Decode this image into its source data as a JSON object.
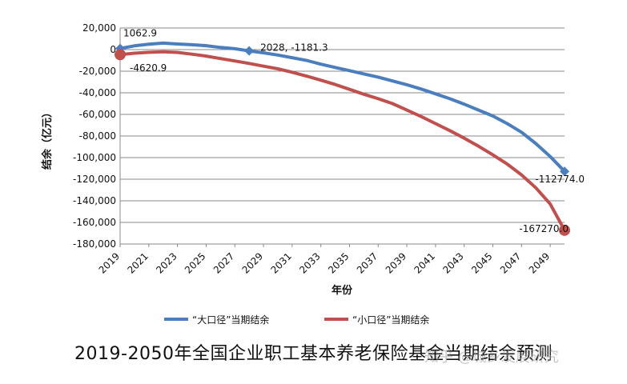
{
  "chart_data": {
    "type": "line",
    "ylabel": "结余（亿元）",
    "xlabel": "年份",
    "ylim": [
      -180000,
      20000
    ],
    "xlim": [
      2019,
      2050
    ],
    "y_ticks": [
      20000,
      0,
      -20000,
      -40000,
      -60000,
      -80000,
      -100000,
      -120000,
      -140000,
      -160000,
      -180000
    ],
    "y_tick_labels": [
      "20,000",
      "0",
      "-20,000",
      "-40,000",
      "-60,000",
      "-80,000",
      "-100,000",
      "-120,000",
      "-140,000",
      "-160,000",
      "-180,000"
    ],
    "x_ticks": [
      2019,
      2021,
      2023,
      2025,
      2027,
      2029,
      2031,
      2033,
      2035,
      2037,
      2039,
      2041,
      2043,
      2045,
      2047,
      2049
    ],
    "grid": "horizontal",
    "legend_position": "bottom",
    "series": [
      {
        "name": "“大口径”当期结余",
        "color": "#4a7ebf",
        "x": [
          2019,
          2020,
          2021,
          2022,
          2023,
          2024,
          2025,
          2026,
          2027,
          2028,
          2029,
          2030,
          2031,
          2032,
          2033,
          2034,
          2035,
          2036,
          2037,
          2038,
          2039,
          2040,
          2041,
          2042,
          2043,
          2044,
          2045,
          2046,
          2047,
          2048,
          2049,
          2050
        ],
        "values": [
          1062.9,
          3500,
          5000,
          6000,
          5200,
          4500,
          3600,
          2000,
          800,
          -1181.3,
          -3000,
          -5000,
          -7500,
          -10000,
          -13500,
          -16500,
          -19500,
          -22500,
          -25500,
          -29000,
          -32500,
          -36500,
          -41000,
          -45500,
          -50500,
          -56000,
          -61500,
          -68500,
          -76500,
          -87000,
          -99000,
          -112774.0
        ]
      },
      {
        "name": "“小口径”当期结余",
        "color": "#c0504d",
        "x": [
          2019,
          2020,
          2021,
          2022,
          2023,
          2024,
          2025,
          2026,
          2027,
          2028,
          2029,
          2030,
          2031,
          2032,
          2033,
          2034,
          2035,
          2036,
          2037,
          2038,
          2039,
          2040,
          2041,
          2042,
          2043,
          2044,
          2045,
          2046,
          2047,
          2048,
          2049,
          2050
        ],
        "values": [
          -4620.9,
          -3300,
          -2500,
          -2000,
          -2600,
          -4200,
          -6000,
          -8300,
          -10500,
          -12800,
          -15300,
          -17800,
          -21000,
          -24500,
          -28300,
          -32300,
          -36800,
          -41300,
          -45500,
          -50000,
          -56000,
          -62000,
          -68500,
          -75000,
          -82000,
          -89500,
          -97500,
          -106000,
          -116000,
          -128000,
          -143000,
          -167270.0
        ]
      }
    ],
    "annotations": [
      {
        "text": "1062.9",
        "series": 0,
        "x": 2019,
        "value": 1062.9,
        "marker": "diamond"
      },
      {
        "text": "2028, -1181.3",
        "series": 0,
        "x": 2028,
        "value": -1181.3,
        "marker": "diamond"
      },
      {
        "text": "-112774.0",
        "series": 0,
        "x": 2050,
        "value": -112774.0,
        "marker": "diamond"
      },
      {
        "text": "-4620.9",
        "series": 1,
        "x": 2019,
        "value": -4620.9,
        "marker": "circle"
      },
      {
        "text": "-167270.0",
        "series": 1,
        "x": 2050,
        "value": -167270.0,
        "marker": "circle"
      }
    ]
  },
  "caption": "2019-2050年全国企业职工基本养老保险基金当期结余预测",
  "watermark": "知乎 @城乡发展研究"
}
